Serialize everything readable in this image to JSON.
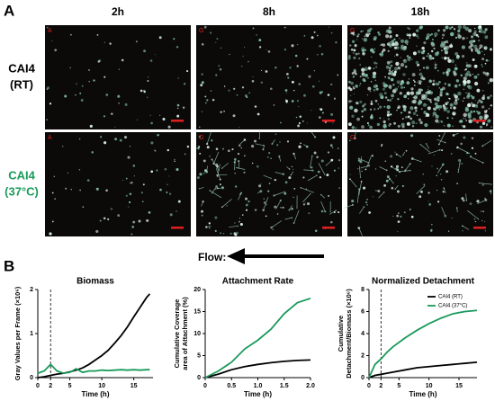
{
  "figure": {
    "panel_a": "A",
    "panel_b": "B",
    "columns": [
      "2h",
      "8h",
      "18h"
    ],
    "rows": [
      [
        "CAI4",
        "(RT)"
      ],
      [
        "CAI4",
        "(37°C)"
      ]
    ],
    "image_letters": [
      [
        "A",
        "G",
        "G"
      ],
      [
        "A",
        "G",
        "G"
      ]
    ],
    "flow": "Flow:"
  },
  "chart_data": [
    {
      "type": "line",
      "title": "Biomass",
      "xlabel": "Time (h)",
      "ylabel": [
        "Gray Values per Frame (×10⁶)"
      ],
      "x": [
        0,
        1,
        2,
        3,
        4,
        5,
        6,
        7,
        8,
        9,
        10,
        11,
        12,
        13,
        14,
        15,
        16,
        17,
        17.5
      ],
      "series": [
        {
          "color": "#000000",
          "values": [
            0,
            0.02,
            0.05,
            0.08,
            0.1,
            0.13,
            0.17,
            0.22,
            0.3,
            0.4,
            0.5,
            0.62,
            0.78,
            0.95,
            1.15,
            1.38,
            1.6,
            1.82,
            1.9
          ]
        },
        {
          "color": "#1a9a5a",
          "values": [
            0.1,
            0.15,
            0.3,
            0.15,
            0.1,
            0.12,
            0.2,
            0.12,
            0.15,
            0.15,
            0.17,
            0.16,
            0.17,
            0.18,
            0.17,
            0.18,
            0.17,
            0.18,
            0.18
          ]
        }
      ],
      "xlim": [
        0,
        18
      ],
      "xticks": [
        0,
        2,
        5,
        10,
        15
      ],
      "ylim": [
        0,
        2
      ],
      "yticks": [
        0,
        1,
        2
      ],
      "vline": 2
    },
    {
      "type": "line",
      "title": "Attachment Rate",
      "xlabel": "Time (h)",
      "ylabel": [
        "Cumulative Coverage",
        "area of Attachment (%)"
      ],
      "x": [
        0,
        0.25,
        0.5,
        0.75,
        1,
        1.25,
        1.5,
        1.75,
        2
      ],
      "series": [
        {
          "color": "#000000",
          "values": [
            0,
            0.8,
            1.8,
            2.5,
            3,
            3.4,
            3.7,
            3.9,
            4
          ]
        },
        {
          "color": "#1a9a5a",
          "values": [
            0,
            1.5,
            3.5,
            6.5,
            8.5,
            11,
            14.5,
            17,
            18
          ]
        }
      ],
      "xlim": [
        0,
        2
      ],
      "xticks": [
        0,
        0.5,
        {
          "value": 1,
          "label": "1.0"
        },
        1.5,
        {
          "value": 2,
          "label": "2.0"
        }
      ],
      "ylim": [
        0,
        20
      ],
      "yticks": [
        0,
        5,
        10,
        15,
        20
      ]
    },
    {
      "type": "line",
      "title": "Normalized  Detachment",
      "xlabel": "Time (h)",
      "ylabel": [
        "Cumulative",
        "Detachment/Biomass (×10⁶)"
      ],
      "x": [
        0,
        1,
        2,
        3,
        4,
        6,
        8,
        10,
        12,
        14,
        16,
        18
      ],
      "series": [
        {
          "name": "CAI4 (RT)",
          "color": "#000000",
          "values": [
            0,
            0.2,
            0.3,
            0.4,
            0.5,
            0.7,
            0.9,
            1.0,
            1.1,
            1.2,
            1.3,
            1.4
          ]
        },
        {
          "name": "CAI4 (37°C)",
          "color": "#1a9a5a",
          "values": [
            0,
            1.2,
            1.7,
            2.3,
            2.8,
            3.6,
            4.3,
            4.9,
            5.4,
            5.8,
            6.0,
            6.1
          ]
        }
      ],
      "xlim": [
        0,
        18
      ],
      "xticks": [
        0,
        2,
        5,
        10,
        15
      ],
      "ylim": [
        0,
        8
      ],
      "yticks": [
        0,
        2,
        4,
        6,
        8
      ],
      "vline": 2,
      "legend": "top-right"
    }
  ]
}
